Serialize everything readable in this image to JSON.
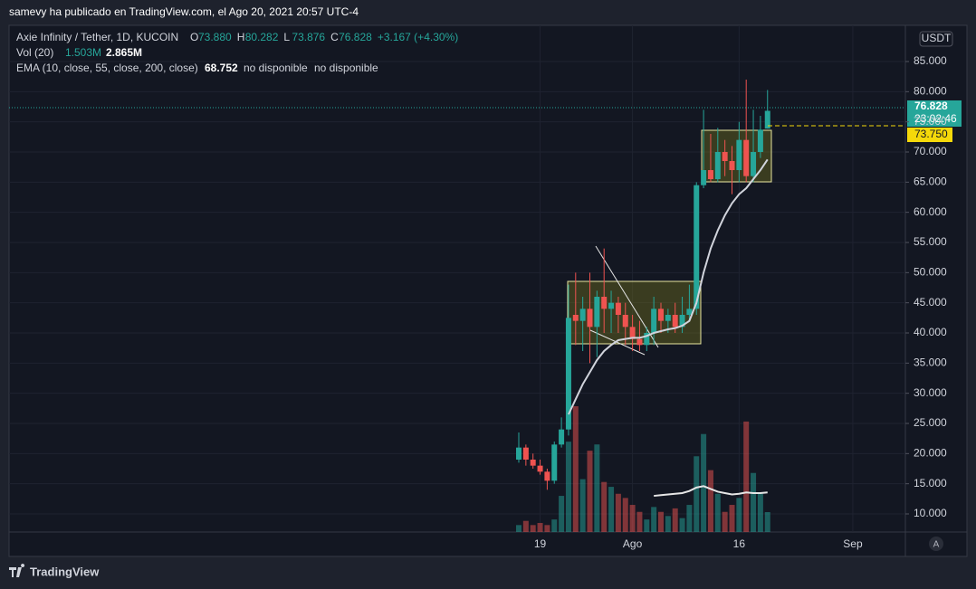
{
  "header": {
    "byline": "samevy ha publicado en TradingView.com, el Ago 20, 2021 20:57 UTC-4"
  },
  "legend": {
    "symbol": "Axie Infinity / Tether, 1D, KUCOIN",
    "ohlc": [
      [
        "O",
        "73.880"
      ],
      [
        "H",
        "80.282"
      ],
      [
        "L",
        "73.876"
      ],
      [
        "C",
        "76.828"
      ]
    ],
    "change": "+3.167 (+4.30%)",
    "volume": "Vol (20)",
    "volume_values": [
      "1.503M",
      "2.865M"
    ],
    "ema": "EMA (10, close, 55, close, 200, close)",
    "ema_values": [
      "68.752",
      "no disponible",
      "no disponible"
    ]
  },
  "footer": {
    "brand": "TradingView"
  },
  "axis_badges": {
    "currency": "USDT",
    "last_price": "76.828",
    "countdown": "23:02:46",
    "line_price": "73.750",
    "auto": "A"
  },
  "chart_data": {
    "type": "candlestick",
    "up_color": "#26a69a",
    "down_color": "#ef5350",
    "ema_color": "#d1d4dc",
    "x": [
      0,
      1,
      2,
      3,
      4,
      5,
      6,
      7,
      8,
      9,
      10,
      11,
      12,
      13,
      14,
      15,
      16,
      17,
      18,
      19,
      20,
      21,
      22,
      23,
      24,
      25,
      26,
      27,
      28,
      29,
      30,
      31,
      32,
      33,
      34,
      35
    ],
    "open": [
      19,
      21,
      19,
      18,
      17,
      15.5,
      21.5,
      24,
      43,
      42,
      44,
      41,
      46,
      44,
      45,
      43,
      41,
      39,
      38,
      40,
      44,
      42,
      43,
      41,
      43,
      44,
      64.5,
      67,
      65.5,
      70,
      68.5,
      67,
      72,
      66,
      70,
      73.88
    ],
    "high": [
      23.5,
      21.5,
      20,
      19,
      17.5,
      22,
      26,
      48,
      50,
      46,
      50,
      47,
      54,
      47,
      46,
      45,
      43,
      42,
      41,
      46,
      45,
      44,
      45,
      46,
      48,
      65,
      77,
      73,
      74,
      72,
      71,
      75,
      82,
      77,
      76,
      80.282
    ],
    "low": [
      18.5,
      18,
      17.5,
      16.5,
      14,
      15,
      21,
      23,
      38,
      37,
      35,
      36,
      40,
      40,
      40,
      38,
      37,
      37,
      37,
      38,
      40,
      40,
      40,
      40,
      42,
      43,
      64,
      65,
      65,
      66,
      63,
      65,
      65,
      65,
      69,
      73.876
    ],
    "close": [
      21,
      19,
      18,
      17,
      15.5,
      21.5,
      24,
      42.5,
      42,
      44,
      41,
      46,
      44,
      45,
      43,
      41,
      39,
      38,
      40,
      44,
      42,
      43,
      41,
      43,
      44,
      64.5,
      67,
      65.5,
      70,
      68.5,
      67,
      72,
      66,
      70,
      73.7,
      76.828
    ],
    "volume": [
      1.0,
      1.6,
      1.0,
      1.3,
      1.0,
      1.8,
      5.2,
      13.0,
      18.1,
      7.6,
      11.7,
      12.6,
      7.2,
      6.5,
      5.5,
      4.9,
      3.9,
      2.9,
      1.8,
      3.6,
      2.9,
      2.3,
      3.4,
      2.0,
      3.9,
      10.9,
      14.1,
      8.9,
      5.5,
      2.9,
      3.9,
      4.9,
      15.9,
      8.5,
      5.5,
      2.865
    ],
    "volume_ma": [
      null,
      null,
      null,
      null,
      null,
      null,
      null,
      null,
      null,
      null,
      null,
      null,
      null,
      null,
      null,
      null,
      null,
      null,
      null,
      5.2,
      5.3,
      5.4,
      5.5,
      5.6,
      5.9,
      6.4,
      6.6,
      6.2,
      5.8,
      5.6,
      5.4,
      5.5,
      5.7,
      5.6,
      5.6,
      5.7
    ],
    "ema": [
      null,
      null,
      null,
      null,
      null,
      null,
      null,
      26.5,
      29,
      31.5,
      33.5,
      35.5,
      37,
      38,
      38.8,
      39,
      39.2,
      39.2,
      39.5,
      40,
      40.3,
      40.6,
      40.8,
      41.2,
      42,
      45,
      50,
      54,
      57,
      59.5,
      61.5,
      63,
      64,
      65.5,
      67,
      68.752
    ],
    "ylim": [
      7,
      91
    ],
    "yticks": [
      {
        "value": 10,
        "label": "10.000"
      },
      {
        "value": 15,
        "label": "15.000"
      },
      {
        "value": 20,
        "label": "20.000"
      },
      {
        "value": 25,
        "label": "25.000"
      },
      {
        "value": 30,
        "label": "30.000"
      },
      {
        "value": 35,
        "label": "35.000"
      },
      {
        "value": 40,
        "label": "40.000"
      },
      {
        "value": 45,
        "label": "45.000"
      },
      {
        "value": 50,
        "label": "50.000"
      },
      {
        "value": 55,
        "label": "55.000"
      },
      {
        "value": 60,
        "label": "60.000"
      },
      {
        "value": 65,
        "label": "65.000"
      },
      {
        "value": 70,
        "label": "70.000"
      },
      {
        "value": 75,
        "label": "75.000"
      },
      {
        "value": 80,
        "label": "80.000"
      },
      {
        "value": 85,
        "label": "85.000"
      }
    ],
    "xticks": [
      {
        "value": 3,
        "label": "19"
      },
      {
        "value": 16,
        "label": "Ago"
      },
      {
        "value": 31,
        "label": "16"
      },
      {
        "value": 47,
        "label": "Sep"
      }
    ],
    "grid": true
  }
}
